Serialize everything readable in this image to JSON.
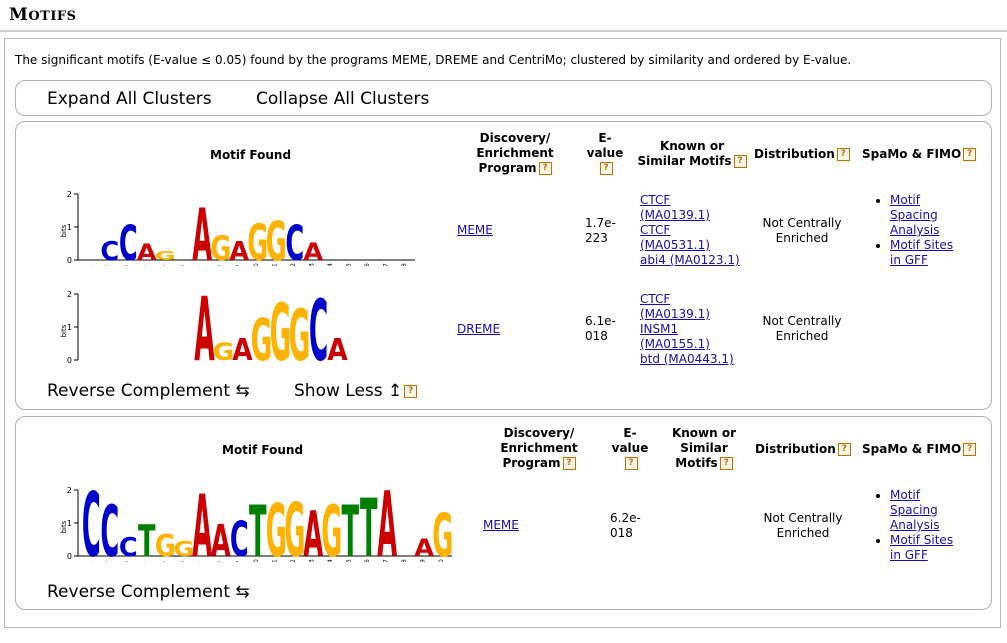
{
  "section": {
    "title_first": "M",
    "title_rest": "OTIFS"
  },
  "intro": "The significant motifs (E-value ≤ 0.05) found by the programs MEME, DREME and CentriMo; clustered by similarity and ordered by E-value.",
  "controls": {
    "expand_all": "Expand All Clusters",
    "collapse_all": "Collapse All Clusters"
  },
  "headers": {
    "motif_found": "Motif Found",
    "discovery_l1": "Discovery/",
    "discovery_l2": "Enrichment",
    "discovery_l3": "Program",
    "evalue_l1": "E-",
    "evalue_l2": "value",
    "known_a_l1": "Known or",
    "known_a_l2": "Similar Motifs",
    "known_b_l1": "Known or",
    "known_b_l2": "Similar",
    "known_b_l3": "Motifs",
    "distribution": "Distribution",
    "spamo": "SpaMo & FIMO",
    "help": "?"
  },
  "logo_axis": {
    "label": "bits",
    "ticks": [
      "2",
      "1",
      "0"
    ]
  },
  "clusters": [
    {
      "motifs": [
        {
          "program": "MEME",
          "evalue_l1": "1.7e-",
          "evalue_l2": "223",
          "known": [
            "CTCF",
            "(MA0139.1)",
            "CTCF",
            "(MA0531.1)",
            "abi4 (MA0123.1)"
          ],
          "distribution_l1": "Not Centrally",
          "distribution_l2": "Enriched",
          "spamo": [
            {
              "l1": "Motif",
              "l2": "Spacing",
              "l3": "Analysis"
            },
            {
              "l1": "Motif Sites",
              "l2": "in GFF"
            }
          ],
          "positions": [
            "1",
            "2",
            "3",
            "4",
            "5",
            "6",
            "7",
            "8",
            "9",
            "10",
            "11",
            "12",
            "13",
            "14",
            "15",
            "16",
            "17",
            "18"
          ],
          "letters": [
            "",
            "C",
            "C",
            "A",
            "G",
            "",
            "A",
            "G",
            "A",
            "G",
            "G",
            "C",
            "A",
            "",
            "",
            "",
            "",
            ""
          ]
        },
        {
          "program": "DREME",
          "evalue_l1": "6.1e-",
          "evalue_l2": "018",
          "known": [
            "CTCF",
            "(MA0139.1)",
            "INSM1",
            "(MA0155.1)",
            "btd (MA0443.1)"
          ],
          "distribution_l1": "Not Centrally",
          "distribution_l2": "Enriched",
          "letters": [
            "A",
            "G",
            "A",
            "G",
            "G",
            "G",
            "C",
            "A"
          ]
        }
      ],
      "reverse_complement": "Reverse Complement",
      "reverse_symbol": "⇆",
      "show_less": "Show Less",
      "show_less_symbol": "↥"
    },
    {
      "motifs": [
        {
          "program": "MEME",
          "evalue_l1": "6.2e-",
          "evalue_l2": "018",
          "distribution_l1": "Not Centrally",
          "distribution_l2": "Enriched",
          "spamo": [
            {
              "l1": "Motif",
              "l2": "Spacing",
              "l3": "Analysis"
            },
            {
              "l1": "Motif Sites",
              "l2": "in GFF"
            }
          ],
          "positions": [
            "1",
            "2",
            "3",
            "4",
            "5",
            "6",
            "7",
            "8",
            "9",
            "10",
            "11",
            "12",
            "13",
            "14",
            "15",
            "16",
            "17",
            "18",
            "19",
            "20"
          ],
          "letters": [
            "C",
            "C",
            "C",
            "T",
            "G",
            "G",
            "A",
            "A",
            "C",
            "T",
            "G",
            "G",
            "A",
            "G",
            "T",
            "T",
            "A",
            "",
            "A",
            "G"
          ]
        }
      ],
      "reverse_complement": "Reverse Complement",
      "reverse_symbol": "⇆"
    }
  ],
  "colors": {
    "A": "#cc0000",
    "C": "#0000cc",
    "G": "#ffb300",
    "T": "#008000"
  }
}
